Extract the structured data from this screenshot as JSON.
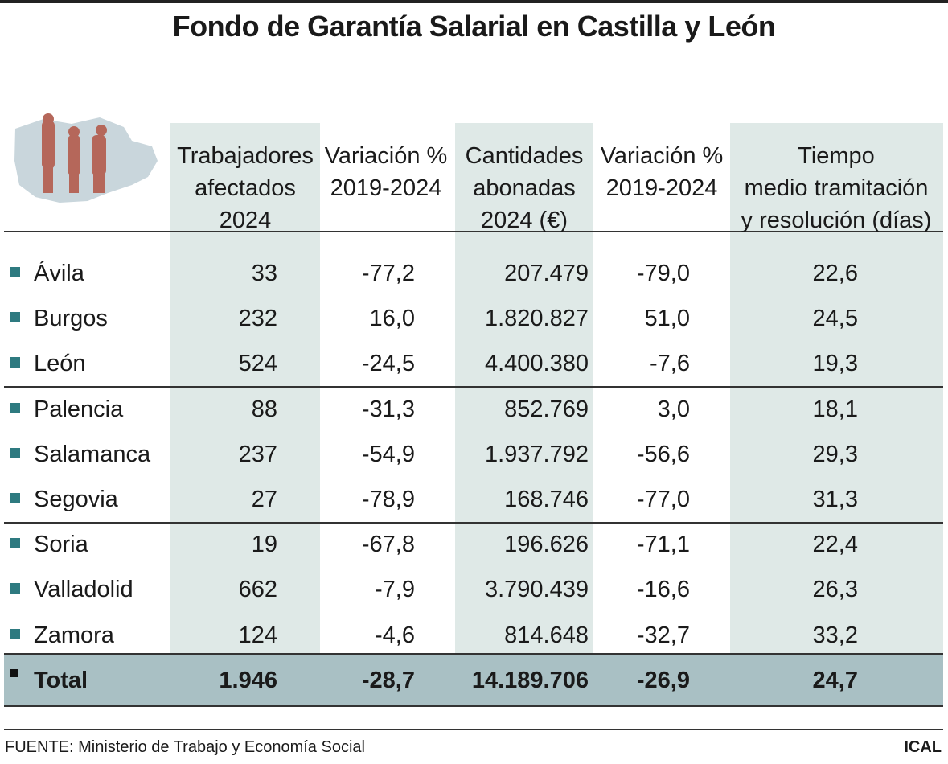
{
  "title": "Fondo de Garantía Salarial en Castilla y León",
  "columns": [
    [
      "Trabajadores",
      "afectados",
      "2024"
    ],
    [
      "Variación %",
      "2019-2024"
    ],
    [
      "Cantidades",
      "abonadas",
      "2024 (€)"
    ],
    [
      "Variación %",
      "2019-2024"
    ],
    [
      "Tiempo",
      "medio tramitación",
      "y resolución (días)"
    ]
  ],
  "rows": [
    [
      "Ávila",
      "33",
      "-77,2",
      "207.479",
      "-79,0",
      "22,6"
    ],
    [
      "Burgos",
      "232",
      "16,0",
      "1.820.827",
      "51,0",
      "24,5"
    ],
    [
      "León",
      "524",
      "-24,5",
      "4.400.380",
      "-7,6",
      "19,3"
    ],
    [
      "Palencia",
      "88",
      "-31,3",
      "852.769",
      "3,0",
      "18,1"
    ],
    [
      "Salamanca",
      "237",
      "-54,9",
      "1.937.792",
      "-56,6",
      "29,3"
    ],
    [
      "Segovia",
      "27",
      "-78,9",
      "168.746",
      "-77,0",
      "31,3"
    ],
    [
      "Soria",
      "19",
      "-67,8",
      "196.626",
      "-71,1",
      "22,4"
    ],
    [
      "Valladolid",
      "662",
      "-7,9",
      "3.790.439",
      "-16,6",
      "26,3"
    ],
    [
      "Zamora",
      "124",
      "-4,6",
      "814.648",
      "-32,7",
      "33,2"
    ]
  ],
  "total": [
    "Total",
    "1.946",
    "-28,7",
    "14.189.706",
    "-26,9",
    "24,7"
  ],
  "source": "FUENTE: Ministerio de Trabajo y Economía Social",
  "credit": "ICAL"
}
